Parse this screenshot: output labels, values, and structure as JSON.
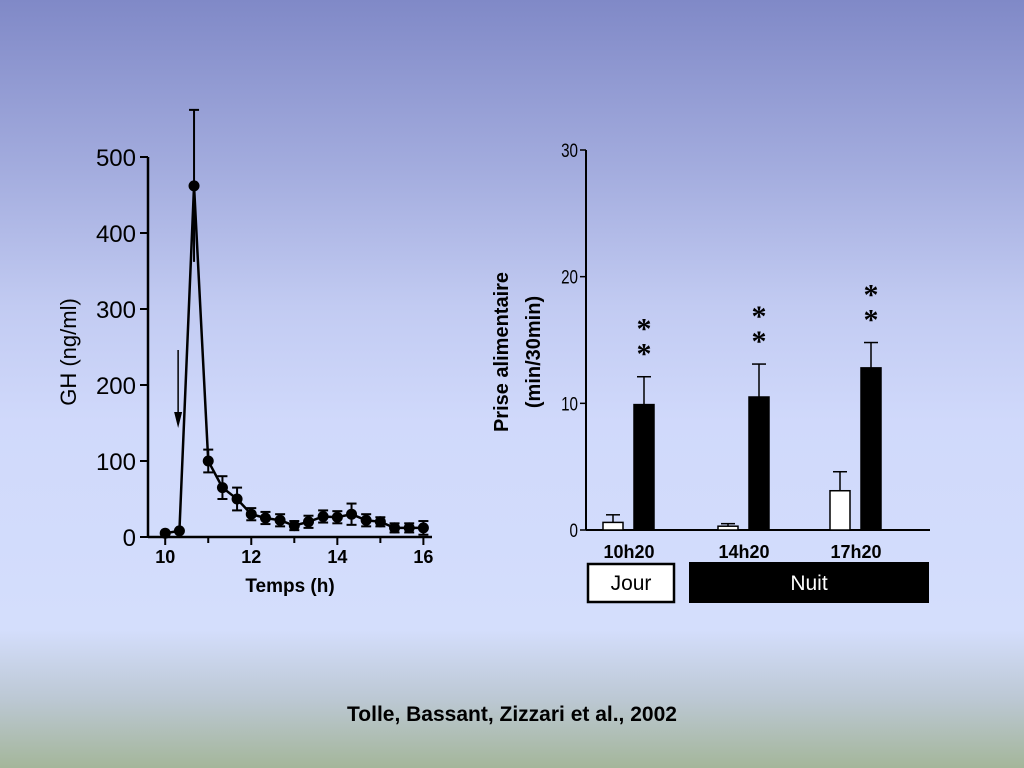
{
  "citation": "Tolle, Bassant, Zizzari et al., 2002",
  "chart_data": [
    {
      "type": "line",
      "ylabel": "GH (ng/ml)",
      "xlabel": "Temps (h)",
      "xlim": [
        9.6,
        16.2
      ],
      "ylim": [
        0,
        500
      ],
      "xticks": [
        10,
        12,
        14,
        16
      ],
      "yticks": [
        0,
        100,
        200,
        300,
        400,
        500
      ],
      "arrow_x": 10.3,
      "series": [
        {
          "x": [
            10.0,
            10.33,
            10.67,
            11.0,
            11.33,
            11.67,
            12.0,
            12.33,
            12.67,
            13.0,
            13.33,
            13.67,
            14.0,
            14.33,
            14.67,
            15.0,
            15.33,
            15.67,
            16.0
          ],
          "y": [
            5,
            8,
            462,
            100,
            65,
            50,
            30,
            25,
            22,
            15,
            20,
            27,
            26,
            30,
            22,
            20,
            12,
            12,
            12
          ],
          "err": [
            0,
            0,
            100,
            15,
            15,
            15,
            8,
            8,
            8,
            6,
            8,
            8,
            8,
            14,
            8,
            6,
            6,
            6,
            9
          ]
        }
      ]
    },
    {
      "type": "bar",
      "ylabel": "Prise alimentaire (min/30min)",
      "ylabel_lines": [
        "Prise alimentaire",
        "(min/30min)"
      ],
      "ylim": [
        0,
        30
      ],
      "yticks": [
        0,
        10,
        20,
        30
      ],
      "categories": [
        "10h20",
        "14h20",
        "17h20"
      ],
      "series": [
        {
          "color": "#ffffff",
          "values": [
            0.6,
            0.3,
            3.1
          ],
          "err": [
            0.6,
            0.2,
            1.5
          ]
        },
        {
          "color": "#000000",
          "values": [
            9.9,
            10.5,
            12.8
          ],
          "err": [
            2.2,
            2.6,
            2.0
          ]
        }
      ],
      "significance": [
        "**",
        "**",
        "**"
      ],
      "periods": [
        {
          "label": "Jour",
          "fill": "#ffffff",
          "text_color": "#000000"
        },
        {
          "label": "Nuit",
          "fill": "#000000",
          "text_color": "#ffffff"
        }
      ]
    }
  ]
}
